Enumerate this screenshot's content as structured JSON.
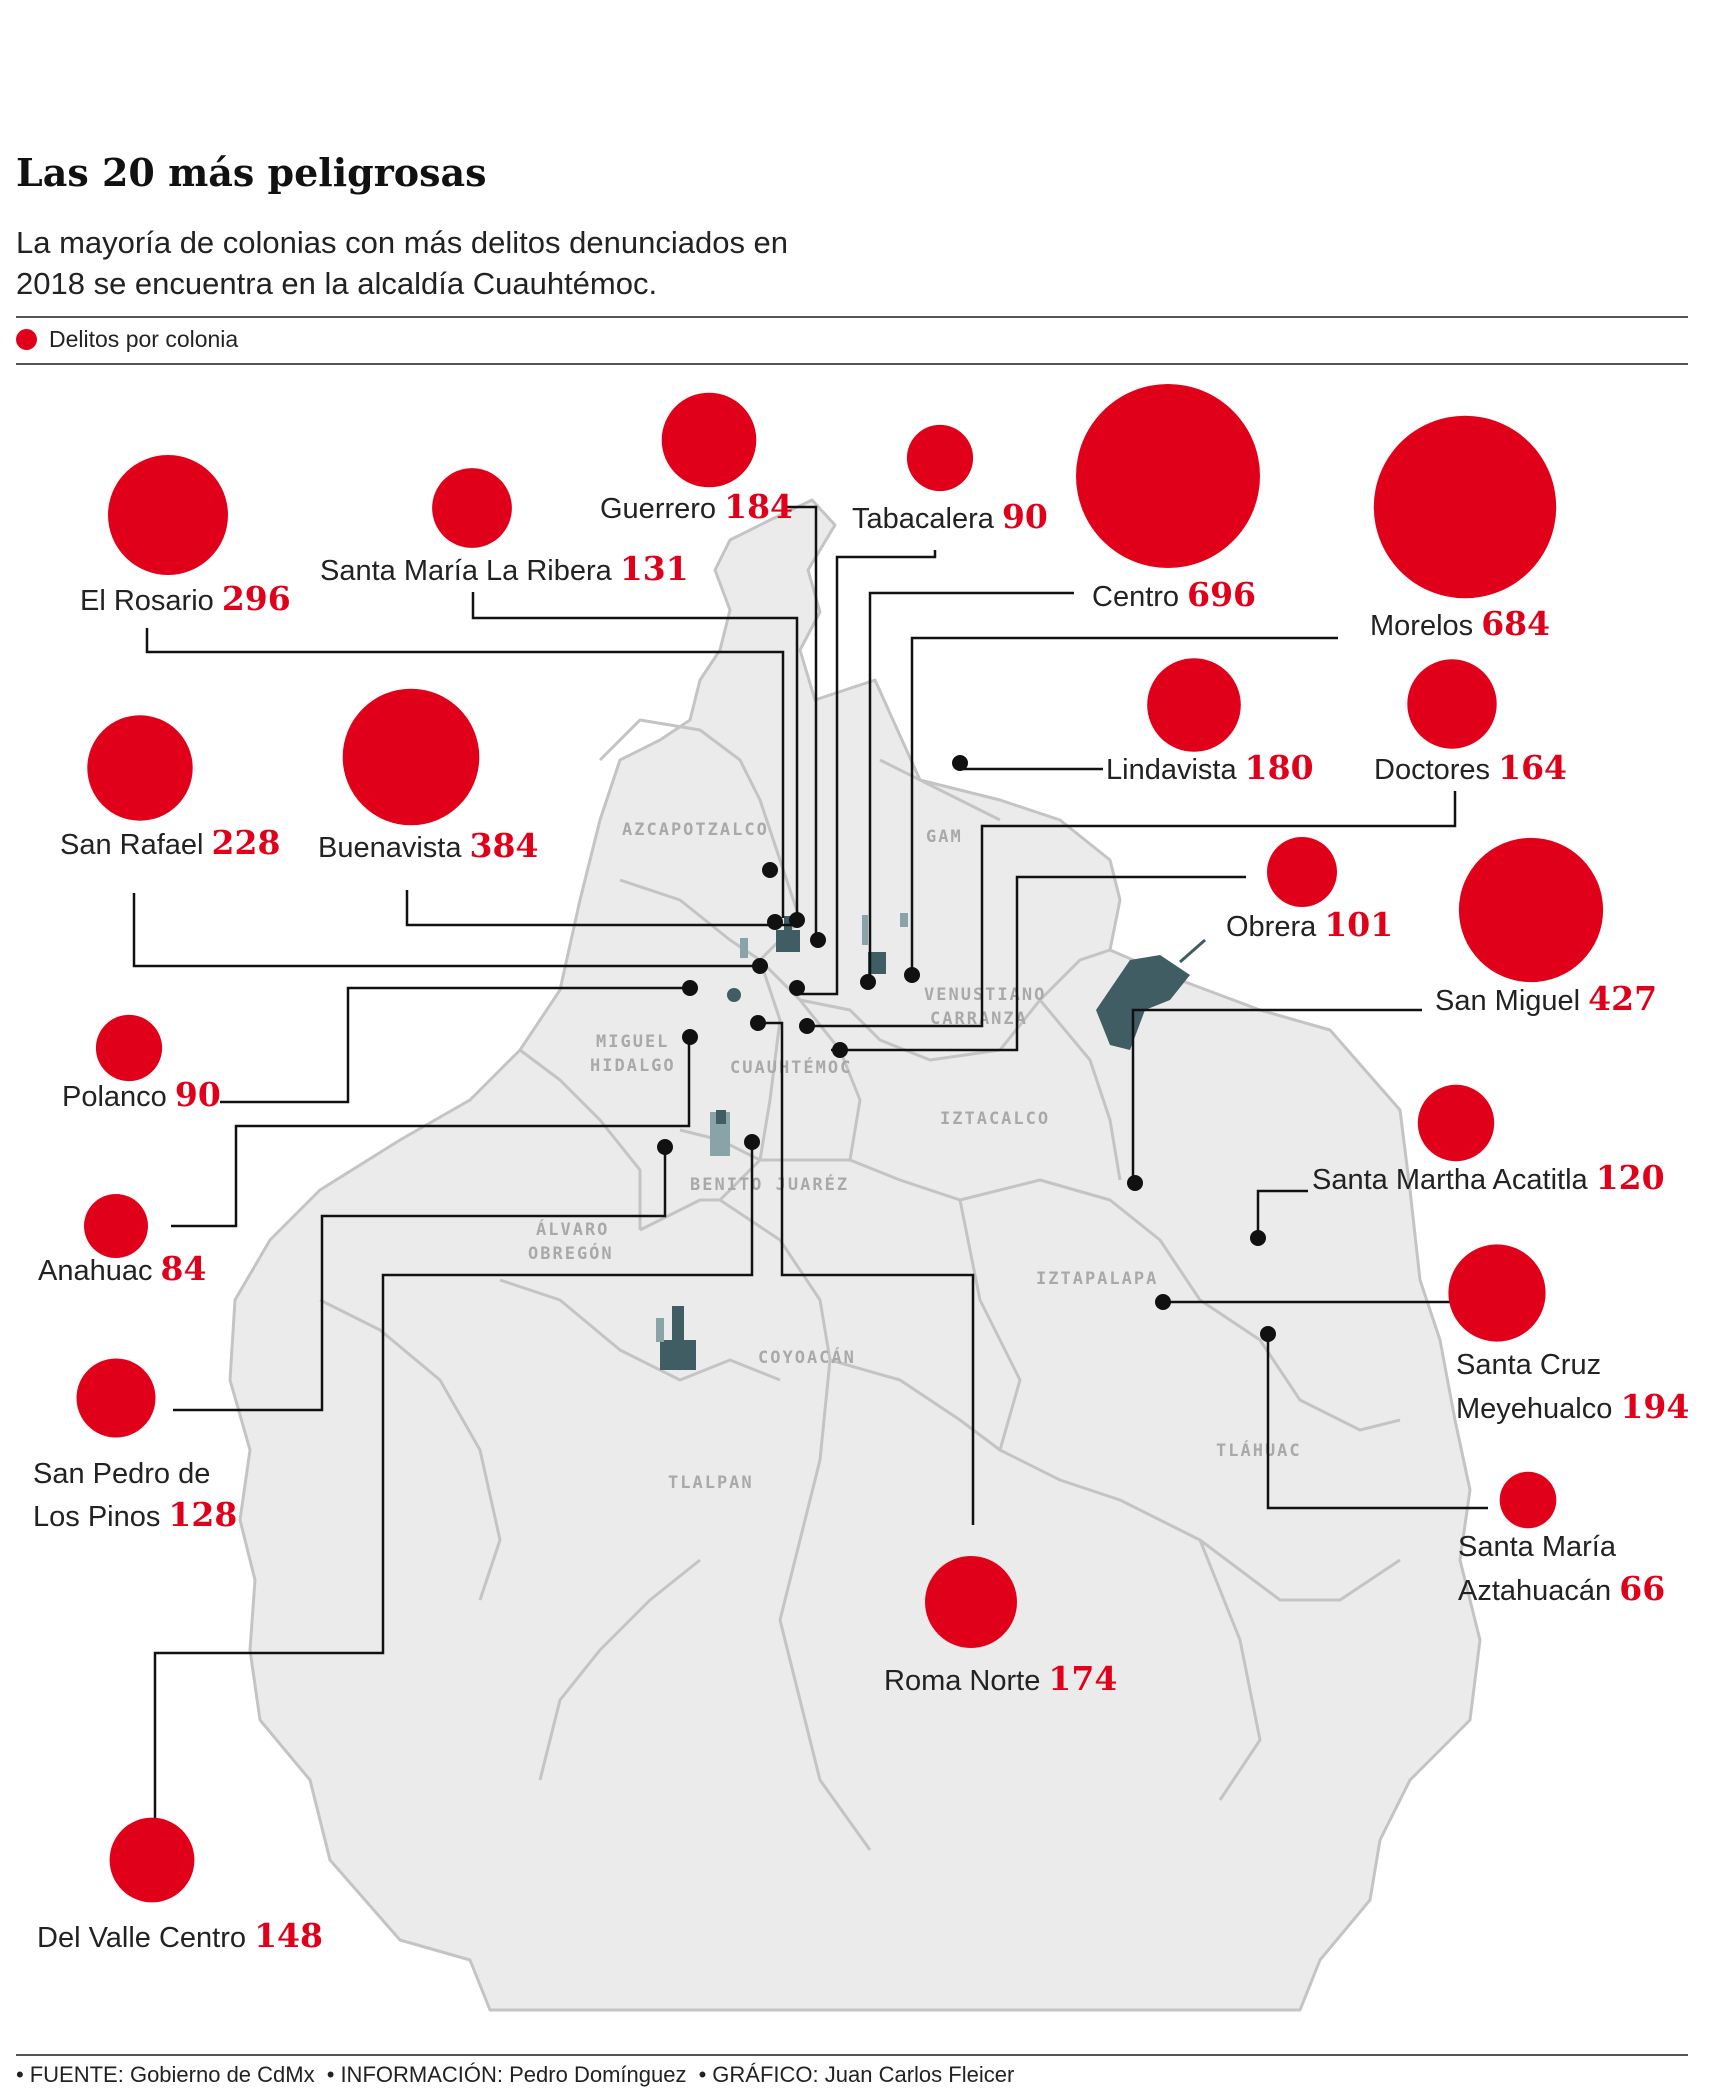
{
  "title": "Las 20 más peligrosas",
  "subtitle": "La mayoría de colonias con más delitos denunciados en 2018 se encuentra en la alcaldía Cuauhtémoc.",
  "legend": {
    "label": "Delitos por colonia",
    "color": "#e1001a"
  },
  "footer": {
    "fuente_label": "FUENTE:",
    "fuente": "Gobierno de CdMx",
    "info_label": "INFORMACIÓN:",
    "info": "Pedro Domínguez",
    "grafico_label": "GRÁFICO:",
    "grafico": "Juan Carlos Fleicer"
  },
  "alcaldias": [
    "AZCAPOTZALCO",
    "GAM",
    "VENUSTIANO",
    "CARRANZA",
    "MIGUEL",
    "HIDALGO",
    "CUAUHTÉMOC",
    "IZTACALCO",
    "BENITO JUARÉZ",
    "ÁLVARO",
    "OBREGÓN",
    "IZTAPALAPA",
    "COYOACÁN",
    "TLÁHUAC",
    "TLALPAN"
  ],
  "colonias": [
    {
      "name": "El Rosario",
      "value": "296"
    },
    {
      "name": "Santa María La Ribera",
      "value": "131"
    },
    {
      "name": "Guerrero",
      "value": "184"
    },
    {
      "name": "Tabacalera",
      "value": "90"
    },
    {
      "name": "Centro",
      "value": "696"
    },
    {
      "name": "Morelos",
      "value": "684"
    },
    {
      "name": "San Rafael",
      "value": "228"
    },
    {
      "name": "Buenavista",
      "value": "384"
    },
    {
      "name": "Lindavista",
      "value": "180"
    },
    {
      "name": "Doctores",
      "value": "164"
    },
    {
      "name": "Obrera",
      "value": "101"
    },
    {
      "name": "San Miguel",
      "value": "427"
    },
    {
      "name": "Polanco",
      "value": "90"
    },
    {
      "name": "Santa Martha Acatitla",
      "value": "120"
    },
    {
      "name": "Anahuac",
      "value": "84"
    },
    {
      "name": "Santa Cruz",
      "name2": "Meyehualco",
      "value": "194"
    },
    {
      "name": "San Pedro de",
      "name2": "Los Pinos",
      "value": "128"
    },
    {
      "name": "Santa María",
      "name2": "Aztahuacán",
      "value": "66"
    },
    {
      "name": "Roma Norte",
      "value": "174"
    },
    {
      "name": "Del Valle Centro",
      "value": "148"
    }
  ],
  "colors": {
    "bubble": "#e1001a",
    "map_fill": "#ebebeb",
    "map_border": "#c4c4c4",
    "leader": "#111111",
    "landmark": "#3f5d63"
  }
}
